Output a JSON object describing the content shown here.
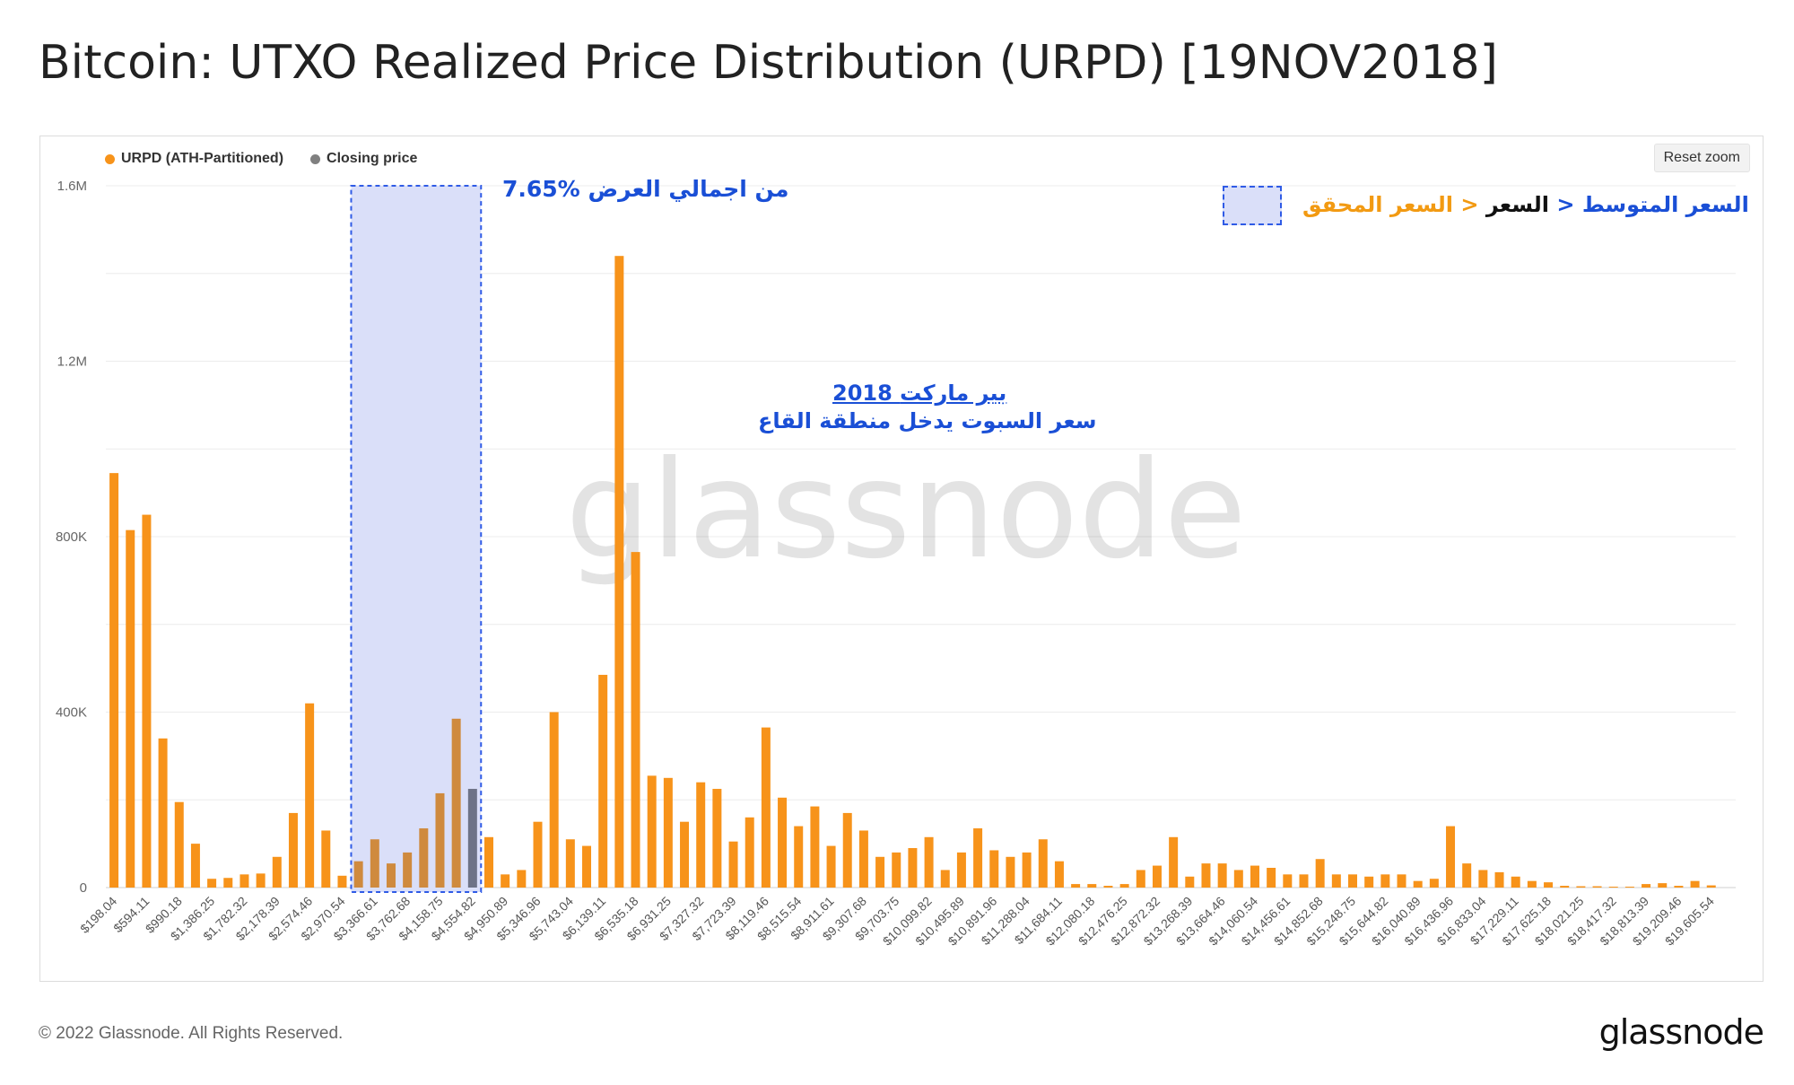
{
  "title": "Bitcoin: UTXO Realized Price Distribution (URPD) [19NOV2018]",
  "reset_zoom": "Reset zoom",
  "legend": [
    {
      "label": "URPD (ATH-Partitioned)",
      "color": "#f7931a"
    },
    {
      "label": "Closing price",
      "color": "#808080"
    }
  ],
  "watermark": "glassnode",
  "annotations": {
    "box_label": "7.65% من اجمالي العرض",
    "legend_key": {
      "mean": "السعر المتوسط",
      "sep": "<",
      "price": "السعر",
      "realized": "السعر المحقق"
    },
    "bear_title": "2018 بير ماركت",
    "bear_sub": "سعر السبوت يدخل منطقة القاع"
  },
  "colors": {
    "bar": "#f7931a",
    "bar_in_box": "#cf8a3e",
    "closing": "#6e7387",
    "box_fill": "#dadff9",
    "box_border": "#2f5be6",
    "annot_blue": "#1a4fd6",
    "annot_orange": "#f29a12",
    "grid": "#ececec"
  },
  "footer": {
    "copyright": "© 2022 Glassnode. All Rights Reserved.",
    "logo": "glassnode"
  },
  "chart_data": {
    "type": "bar",
    "ylim": [
      0,
      1600000
    ],
    "y_ticks": [
      0,
      400000,
      800000,
      1200000,
      1600000
    ],
    "y_tick_labels": [
      "0",
      "400K",
      "800K",
      "1.2M",
      "1.6M"
    ],
    "x_tick_labels": [
      "$198.04",
      "$594.11",
      "$990.18",
      "$1,386.25",
      "$1,782.32",
      "$2,178.39",
      "$2,574.46",
      "$2,970.54",
      "$3,366.61",
      "$3,762.68",
      "$4,158.75",
      "$4,554.82",
      "$4,950.89",
      "$5,346.96",
      "$5,743.04",
      "$6,139.11",
      "$6,535.18",
      "$6,931.25",
      "$7,327.32",
      "$7,723.39",
      "$8,119.46",
      "$8,515.54",
      "$8,911.61",
      "$9,307.68",
      "$9,703.75",
      "$10,099.82",
      "$10,495.89",
      "$10,891.96",
      "$11,288.04",
      "$11,684.11",
      "$12,080.18",
      "$12,476.25",
      "$12,872.32",
      "$13,268.39",
      "$13,664.46",
      "$14,060.54",
      "$14,456.61",
      "$14,852.68",
      "$15,248.75",
      "$15,644.82",
      "$16,040.89",
      "$16,436.96",
      "$16,833.04",
      "$17,229.11",
      "$17,625.18",
      "$18,021.25",
      "$18,417.32",
      "$18,813.39",
      "$19,209.46",
      "$19,605.54"
    ],
    "values": [
      945000,
      815000,
      850000,
      340000,
      195000,
      100000,
      20000,
      22000,
      30000,
      32000,
      70000,
      170000,
      420000,
      130000,
      27000,
      60000,
      110000,
      55000,
      80000,
      135000,
      215000,
      385000,
      225000,
      115000,
      30000,
      40000,
      150000,
      400000,
      110000,
      95000,
      485000,
      1440000,
      765000,
      255000,
      250000,
      150000,
      240000,
      225000,
      105000,
      160000,
      365000,
      205000,
      140000,
      185000,
      95000,
      170000,
      130000,
      70000,
      80000,
      90000,
      115000,
      40000,
      80000,
      135000,
      85000,
      70000,
      80000,
      110000,
      60000,
      8000,
      8000,
      4000,
      8000,
      40000,
      50000,
      115000,
      25000,
      55000,
      55000,
      40000,
      50000,
      45000,
      30000,
      30000,
      65000,
      30000,
      30000,
      25000,
      30000,
      30000,
      15000,
      20000,
      140000,
      55000,
      40000,
      35000,
      25000,
      15000,
      12000,
      4000,
      3000,
      3000,
      2000,
      2000,
      8000,
      10000,
      4000,
      15000,
      5000,
      0
    ],
    "closing_index": 22,
    "box_index_range": [
      15,
      22
    ]
  }
}
